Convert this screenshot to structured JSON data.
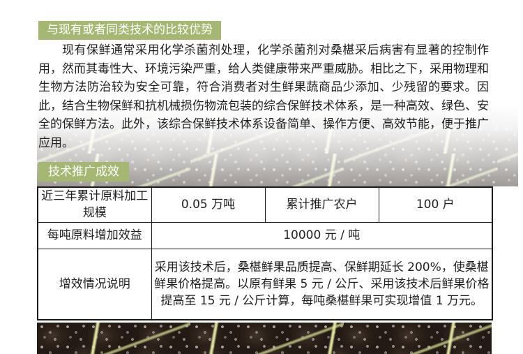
{
  "colors": {
    "accent_green": "#a4b873",
    "text": "#1f1f1f",
    "table_border": "#1a1a1a",
    "page_background": "#ffffff"
  },
  "comparison_section": {
    "heading": "与现有或者同类技术的比较优势",
    "paragraph": "现有保鲜通常采用化学杀菌剂处理，化学杀菌剂对桑椹采后病害有显著的控制作用，然而其毒性大、环境污染严重，给人类健康带来严重威胁。相比之下，采用物理和生物方法防治较为安全可靠，符合消费者对生鲜果蔬商品少添加、少残留的要求。因此，结合生物保鲜和抗机械损伤物流包装的综合保鲜技术体系，是一种高效、绿色、安全的保鲜方法。此外，该综合保鲜技术体系设备简单、操作方便、高效节能，便于推广应用。"
  },
  "promotion_section": {
    "heading": "技术推广成效",
    "table": {
      "raw_material_scale_label": "近三年累计原料加工规模",
      "raw_material_scale_value": "0.05 万吨",
      "promoted_farmers_label": "累计推广农户",
      "promoted_farmers_value": "100 户",
      "per_ton_benefit_label": "每吨原料增加效益",
      "per_ton_benefit_value": "10000 元 / 吨",
      "benefit_description_label": "增效情况说明",
      "benefit_description_value": "采用该技术后，桑椹鲜果品质提高、保鲜期延长 200%，使桑椹鲜果价格提高。以原有鲜果 5 元 / 公斤、采用该技术后鲜果价格提高至 15 元 / 公斤计算，每吨桑椹鲜果可实现增值 1 万元。"
    }
  },
  "decor": {
    "middle_band_photo": "faded-mulberry-fruit-photo",
    "bottom_strip_photo": "mulberry-fruit-photo"
  }
}
